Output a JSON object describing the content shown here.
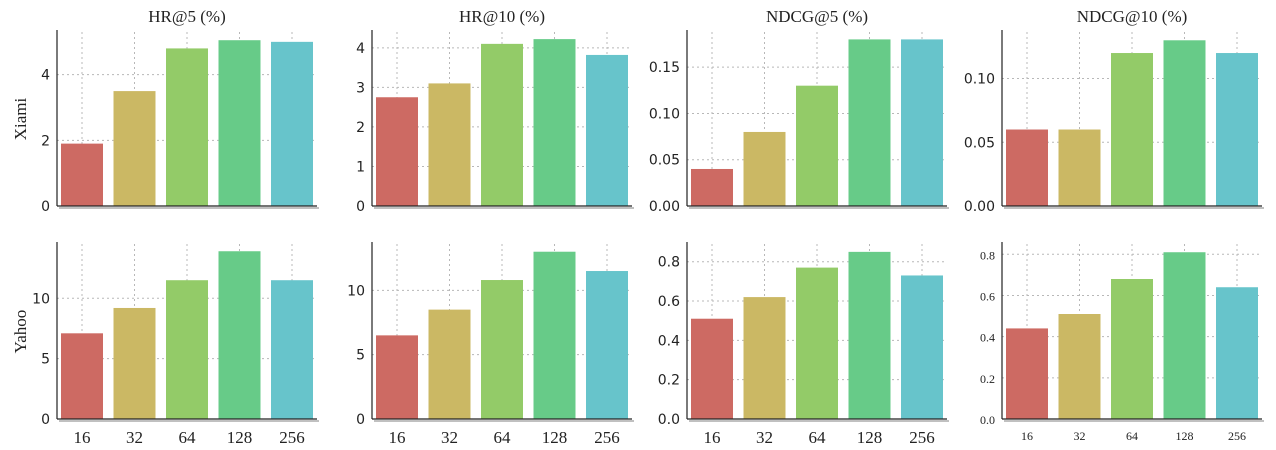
{
  "colors": [
    "#cd6a63",
    "#cbb864",
    "#93cb68",
    "#67cb88",
    "#67c4cb"
  ],
  "chart_data": [
    {
      "type": "bar",
      "title": "HR@5 (%)",
      "row_label": "Xiami",
      "categories": [
        "16",
        "32",
        "64",
        "128",
        "256"
      ],
      "values": [
        1.9,
        3.5,
        4.8,
        5.05,
        5.0
      ],
      "ylim": [
        0,
        5.3
      ],
      "yticks": [
        0,
        2,
        4
      ],
      "ytick_labels": [
        "0",
        "2",
        "4"
      ],
      "show_xticks": false,
      "grid": true
    },
    {
      "type": "bar",
      "title": "HR@10 (%)",
      "row_label": "",
      "categories": [
        "16",
        "32",
        "64",
        "128",
        "256"
      ],
      "values": [
        2.75,
        3.1,
        4.1,
        4.22,
        3.82
      ],
      "ylim": [
        0,
        4.4
      ],
      "yticks": [
        0,
        1,
        2,
        3,
        4
      ],
      "ytick_labels": [
        "0",
        "1",
        "2",
        "3",
        "4"
      ],
      "show_xticks": false,
      "grid": true
    },
    {
      "type": "bar",
      "title": "NDCG@5 (%)",
      "row_label": "",
      "categories": [
        "16",
        "32",
        "64",
        "128",
        "256"
      ],
      "values": [
        0.04,
        0.08,
        0.13,
        0.18,
        0.18
      ],
      "ylim": [
        0,
        0.188
      ],
      "yticks": [
        0,
        0.05,
        0.1,
        0.15
      ],
      "ytick_labels": [
        "0.00",
        "0.05",
        "0.10",
        "0.15"
      ],
      "show_xticks": false,
      "grid": true
    },
    {
      "type": "bar",
      "title": "NDCG@10 (%)",
      "row_label": "",
      "categories": [
        "16",
        "32",
        "64",
        "128",
        "256"
      ],
      "values": [
        0.06,
        0.06,
        0.12,
        0.13,
        0.12
      ],
      "ylim": [
        0,
        0.1365
      ],
      "yticks": [
        0,
        0.05,
        0.1
      ],
      "ytick_labels": [
        "0.00",
        "0.05",
        "0.10"
      ],
      "show_xticks": false,
      "grid": true
    },
    {
      "type": "bar",
      "title": "",
      "row_label": "Yahoo",
      "categories": [
        "16",
        "32",
        "64",
        "128",
        "256"
      ],
      "values": [
        7.1,
        9.2,
        11.5,
        13.9,
        11.5
      ],
      "ylim": [
        0,
        14.5
      ],
      "yticks": [
        0,
        5,
        10
      ],
      "ytick_labels": [
        "0",
        "5",
        "10"
      ],
      "show_xticks": true,
      "grid": true
    },
    {
      "type": "bar",
      "title": "",
      "row_label": "",
      "categories": [
        "16",
        "32",
        "64",
        "128",
        "256"
      ],
      "values": [
        6.5,
        8.5,
        10.8,
        13.0,
        11.5
      ],
      "ylim": [
        0,
        13.6
      ],
      "yticks": [
        0,
        5,
        10
      ],
      "ytick_labels": [
        "0",
        "5",
        "10"
      ],
      "show_xticks": true,
      "grid": true
    },
    {
      "type": "bar",
      "title": "",
      "row_label": "",
      "categories": [
        "16",
        "32",
        "64",
        "128",
        "256"
      ],
      "values": [
        0.51,
        0.62,
        0.77,
        0.85,
        0.73
      ],
      "ylim": [
        0,
        0.89
      ],
      "yticks": [
        0,
        0.2,
        0.4,
        0.6,
        0.8
      ],
      "ytick_labels": [
        "0.0",
        "0.2",
        "0.4",
        "0.6",
        "0.8"
      ],
      "show_xticks": true,
      "grid": true
    },
    {
      "type": "bar",
      "title": "",
      "row_label": "",
      "categories": [
        "16",
        "32",
        "64",
        "128",
        "256"
      ],
      "values": [
        0.44,
        0.51,
        0.68,
        0.81,
        0.64
      ],
      "ylim": [
        0,
        0.85
      ],
      "yticks": [
        0,
        0.2,
        0.4,
        0.6,
        0.8
      ],
      "ytick_labels": [
        "0.0",
        "0.2",
        "0.4",
        "0.6",
        "0.8"
      ],
      "show_xticks": true,
      "grid": true,
      "small_font": true
    }
  ]
}
